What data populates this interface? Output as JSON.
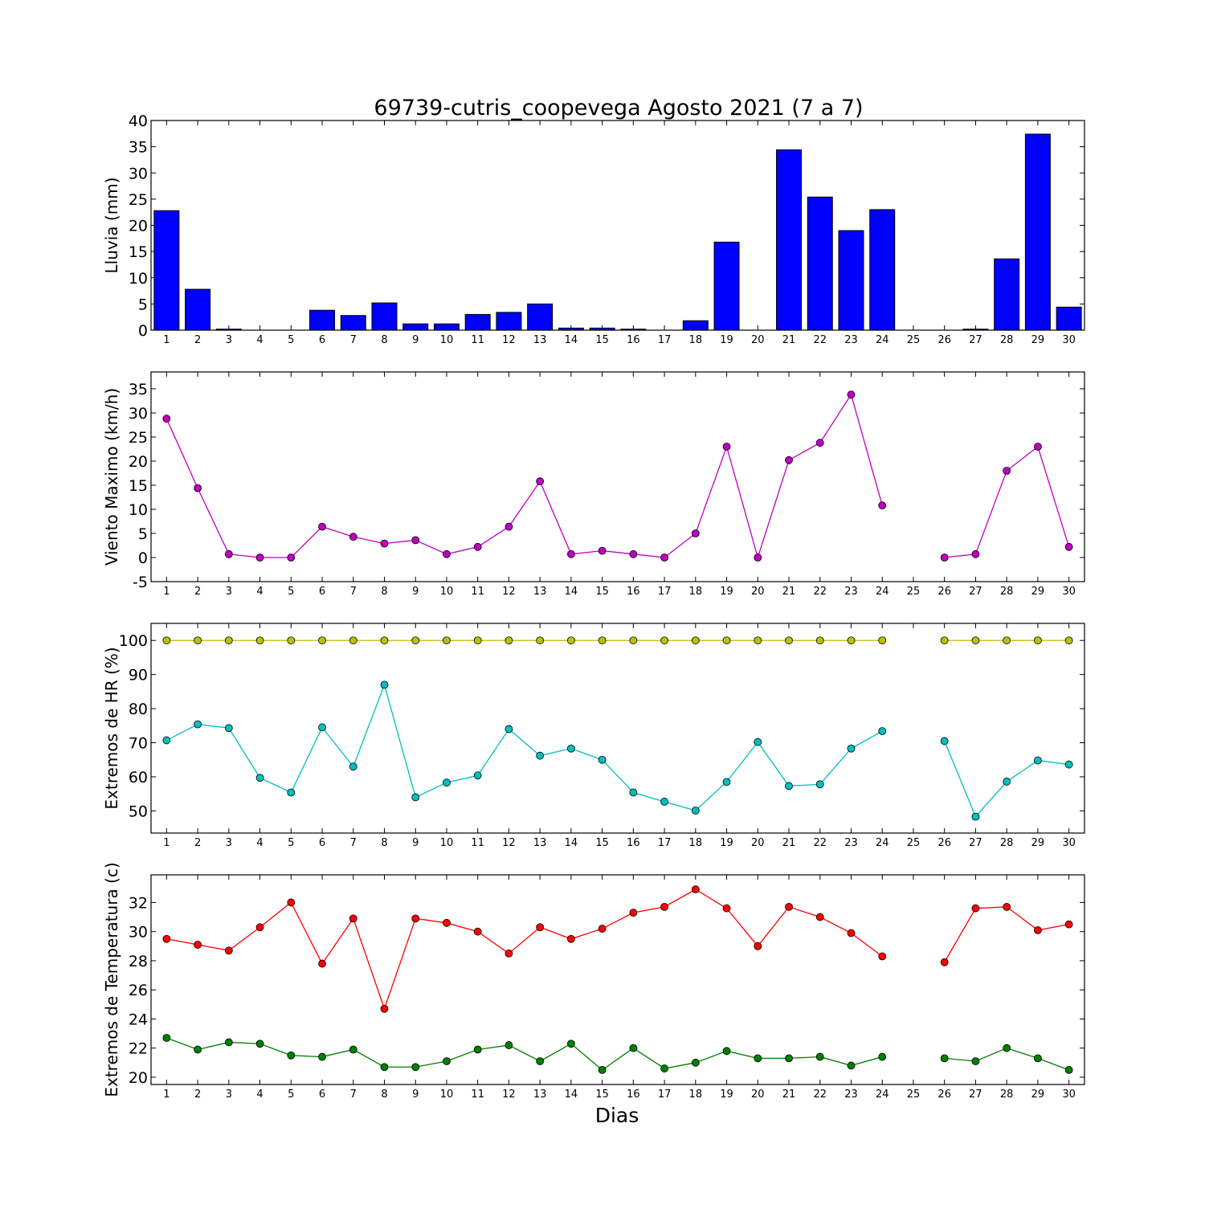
{
  "figure": {
    "title": "69739-cutris_coopevega Agosto 2021  (7 a 7)",
    "xlabel": "Dias"
  },
  "chart_data": [
    {
      "type": "bar",
      "ylabel": "Lluvia (mm)",
      "ylim": [
        0,
        40
      ],
      "yticks": [
        0,
        5,
        10,
        15,
        20,
        25,
        30,
        35,
        40
      ],
      "categories": [
        1,
        2,
        3,
        4,
        5,
        6,
        7,
        8,
        9,
        10,
        11,
        12,
        13,
        14,
        15,
        16,
        17,
        18,
        19,
        20,
        21,
        22,
        23,
        24,
        25,
        26,
        27,
        28,
        29,
        30
      ],
      "values": [
        22.8,
        7.8,
        0.2,
        0.0,
        0.0,
        3.8,
        2.8,
        5.2,
        1.2,
        1.2,
        3.0,
        3.4,
        5.0,
        0.4,
        0.4,
        0.2,
        0.0,
        1.8,
        16.8,
        0.0,
        34.4,
        25.4,
        19.0,
        23.0,
        0.0,
        0.0,
        0.2,
        13.6,
        37.4,
        4.4
      ],
      "color": "#0000ff"
    },
    {
      "type": "line",
      "ylabel": "Viento Maximo (km/h)",
      "ylim": [
        -5,
        38.5
      ],
      "yticks": [
        -5,
        0,
        5,
        10,
        15,
        20,
        25,
        30,
        35
      ],
      "x": [
        1,
        2,
        3,
        4,
        5,
        6,
        7,
        8,
        9,
        10,
        11,
        12,
        13,
        14,
        15,
        16,
        17,
        18,
        19,
        20,
        21,
        22,
        23,
        24,
        25,
        26,
        27,
        28,
        29,
        30
      ],
      "series": [
        {
          "color": "#bf00bf",
          "values": [
            28.8,
            14.4,
            0.7,
            0.0,
            0.0,
            6.4,
            4.3,
            2.9,
            3.6,
            0.7,
            2.2,
            6.4,
            15.8,
            0.7,
            1.4,
            0.7,
            0.0,
            5.0,
            23.0,
            0.0,
            20.2,
            23.8,
            33.8,
            10.8,
            null,
            0.0,
            0.7,
            18.0,
            23.0,
            2.2
          ]
        }
      ]
    },
    {
      "type": "line",
      "ylabel": "Extremos de HR (%)",
      "ylim": [
        43.5,
        105
      ],
      "yticks": [
        50,
        60,
        70,
        80,
        90,
        100
      ],
      "x": [
        1,
        2,
        3,
        4,
        5,
        6,
        7,
        8,
        9,
        10,
        11,
        12,
        13,
        14,
        15,
        16,
        17,
        18,
        19,
        20,
        21,
        22,
        23,
        24,
        25,
        26,
        27,
        28,
        29,
        30
      ],
      "series": [
        {
          "color": "#bfbf00",
          "values": [
            100,
            100,
            100,
            100,
            100,
            100,
            100,
            100,
            100,
            100,
            100,
            100,
            100,
            100,
            100,
            100,
            100,
            100,
            100,
            100,
            100,
            100,
            100,
            100,
            null,
            100,
            100,
            100,
            100,
            100
          ]
        },
        {
          "color": "#00bfbf",
          "values": [
            70.7,
            75.4,
            74.3,
            59.7,
            55.4,
            74.5,
            63.0,
            87.0,
            54.0,
            58.3,
            60.4,
            74.0,
            66.2,
            68.3,
            65.0,
            55.4,
            52.7,
            50.1,
            58.5,
            70.2,
            57.3,
            57.8,
            68.3,
            73.4,
            null,
            70.5,
            48.3,
            58.6,
            64.8,
            63.6
          ]
        }
      ]
    },
    {
      "type": "line",
      "ylabel": "Extremos de Temperatura (c)",
      "ylim": [
        19.5,
        33.9
      ],
      "yticks": [
        20,
        22,
        24,
        26,
        28,
        30,
        32
      ],
      "x": [
        1,
        2,
        3,
        4,
        5,
        6,
        7,
        8,
        9,
        10,
        11,
        12,
        13,
        14,
        15,
        16,
        17,
        18,
        19,
        20,
        21,
        22,
        23,
        24,
        25,
        26,
        27,
        28,
        29,
        30
      ],
      "series": [
        {
          "color": "#ff0000",
          "values": [
            29.5,
            29.1,
            28.7,
            30.3,
            32.0,
            27.8,
            30.9,
            24.7,
            30.9,
            30.6,
            30.0,
            28.5,
            30.3,
            29.5,
            30.2,
            31.3,
            31.7,
            32.9,
            31.6,
            29.0,
            31.7,
            31.0,
            29.9,
            28.3,
            null,
            27.9,
            31.6,
            31.7,
            30.1,
            30.5
          ]
        },
        {
          "color": "#007f00",
          "values": [
            22.7,
            21.9,
            22.4,
            22.3,
            21.5,
            21.4,
            21.9,
            20.7,
            20.7,
            21.1,
            21.9,
            22.2,
            21.1,
            22.3,
            20.5,
            22.0,
            20.6,
            21.0,
            21.8,
            21.3,
            21.3,
            21.4,
            20.8,
            21.4,
            null,
            21.3,
            21.1,
            22.0,
            21.3,
            20.5
          ]
        }
      ]
    }
  ]
}
